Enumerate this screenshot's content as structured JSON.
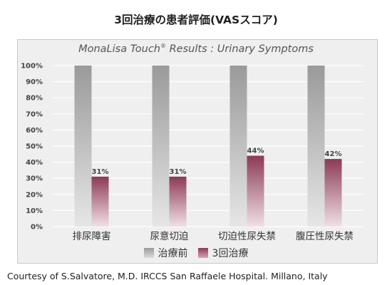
{
  "heading": "3回治療の患者評価(VASスコア)",
  "chart_title_main": "MonaLisa Touch",
  "chart_title_reg": "®",
  "chart_title_rest": " Results : Urinary Symptoms",
  "credit": "Courtesy of S.Salvatore, M.D. IRCCS San Raffaele Hospital. Millano, Italy",
  "colors": {
    "series_before": "#a0a0a0",
    "series_after": "#8c3a55"
  },
  "chart_data": {
    "type": "bar",
    "categories": [
      "排尿障害",
      "尿意切迫",
      "切迫性尿失禁",
      "腹圧性尿失禁"
    ],
    "series": [
      {
        "name": "治療前",
        "values": [
          100,
          100,
          100,
          100
        ]
      },
      {
        "name": "3回治療",
        "values": [
          31,
          31,
          44,
          42
        ],
        "data_labels": [
          "31%",
          "31%",
          "44%",
          "42%"
        ]
      }
    ],
    "y_ticks": [
      "0%",
      "10%",
      "20%",
      "30%",
      "40%",
      "50%",
      "60%",
      "70%",
      "80%",
      "90%",
      "100%"
    ],
    "ylim": [
      0,
      100
    ],
    "grid": true,
    "legend": "bottom-center"
  }
}
